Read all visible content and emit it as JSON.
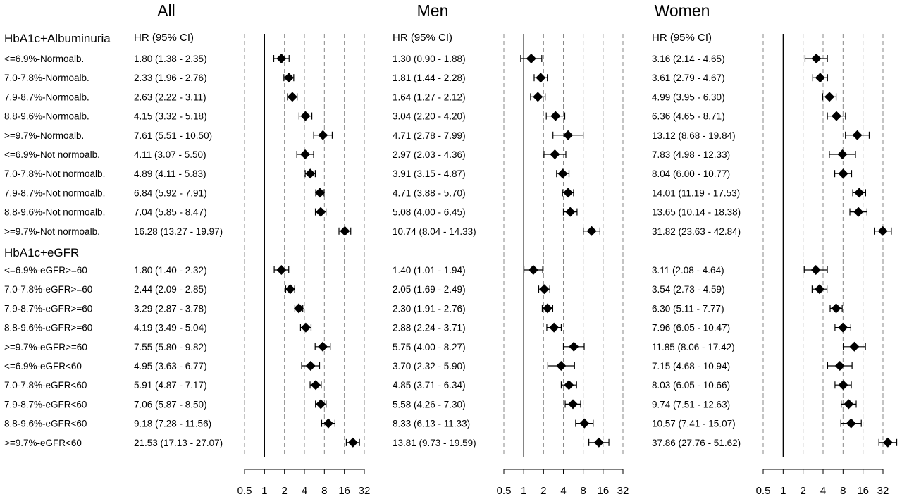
{
  "chart_data": {
    "type": "forest",
    "x_scale": "log2",
    "ticks": [
      0.5,
      1,
      2,
      4,
      8,
      16,
      32
    ],
    "tick_labels": [
      "0.5",
      "1",
      "2",
      "4",
      "8",
      "16",
      "32"
    ],
    "xlim": [
      0.5,
      32
    ],
    "reference_line": 1,
    "dashed_gridlines": [
      0.5,
      2,
      4,
      8,
      16,
      32
    ],
    "ci_header": "HR (95% CI)",
    "marker": "diamond",
    "groups": [
      {
        "title": "HbA1c+Albuminuria",
        "rows": [
          {
            "label": "<=6.9%-Normoalb.",
            "all": {
              "text": "1.80 (1.38 - 2.35)",
              "hr": 1.8,
              "lo": 1.38,
              "hi": 2.35
            },
            "men": {
              "text": "1.30 (0.90 - 1.88)",
              "hr": 1.3,
              "lo": 0.9,
              "hi": 1.88
            },
            "women": {
              "text": "3.16 (2.14 - 4.65)",
              "hr": 3.16,
              "lo": 2.14,
              "hi": 4.65
            }
          },
          {
            "label": "7.0-7.8%-Normoalb.",
            "all": {
              "text": "2.33 (1.96 - 2.76)",
              "hr": 2.33,
              "lo": 1.96,
              "hi": 2.76
            },
            "men": {
              "text": "1.81 (1.44 - 2.28)",
              "hr": 1.81,
              "lo": 1.44,
              "hi": 2.28
            },
            "women": {
              "text": "3.61 (2.79 - 4.67)",
              "hr": 3.61,
              "lo": 2.79,
              "hi": 4.67
            }
          },
          {
            "label": "7.9-8.7%-Normoalb.",
            "all": {
              "text": "2.63 (2.22 - 3.11)",
              "hr": 2.63,
              "lo": 2.22,
              "hi": 3.11
            },
            "men": {
              "text": "1.64 (1.27 - 2.12)",
              "hr": 1.64,
              "lo": 1.27,
              "hi": 2.12
            },
            "women": {
              "text": "4.99 (3.95 - 6.30)",
              "hr": 4.99,
              "lo": 3.95,
              "hi": 6.3
            }
          },
          {
            "label": "8.8-9.6%-Normoalb.",
            "all": {
              "text": "4.15 (3.32 - 5.18)",
              "hr": 4.15,
              "lo": 3.32,
              "hi": 5.18
            },
            "men": {
              "text": "3.04 (2.20 - 4.20)",
              "hr": 3.04,
              "lo": 2.2,
              "hi": 4.2
            },
            "women": {
              "text": "6.36 (4.65 - 8.71)",
              "hr": 6.36,
              "lo": 4.65,
              "hi": 8.71
            }
          },
          {
            "label": ">=9.7%-Normoalb.",
            "all": {
              "text": "7.61 (5.51 - 10.50)",
              "hr": 7.61,
              "lo": 5.51,
              "hi": 10.5
            },
            "men": {
              "text": "4.71 (2.78 - 7.99)",
              "hr": 4.71,
              "lo": 2.78,
              "hi": 7.99
            },
            "women": {
              "text": "13.12 (8.68 - 19.84)",
              "hr": 13.12,
              "lo": 8.68,
              "hi": 19.84
            }
          },
          {
            "label": "<=6.9%-Not normoalb.",
            "all": {
              "text": "4.11 (3.07 - 5.50)",
              "hr": 4.11,
              "lo": 3.07,
              "hi": 5.5
            },
            "men": {
              "text": "2.97 (2.03 - 4.36)",
              "hr": 2.97,
              "lo": 2.03,
              "hi": 4.36
            },
            "women": {
              "text": "7.83 (4.98 - 12.33)",
              "hr": 7.83,
              "lo": 4.98,
              "hi": 12.33
            }
          },
          {
            "label": "7.0-7.8%-Not normoalb.",
            "all": {
              "text": "4.89 (4.11 - 5.83)",
              "hr": 4.89,
              "lo": 4.11,
              "hi": 5.83
            },
            "men": {
              "text": "3.91 (3.15 - 4.87)",
              "hr": 3.91,
              "lo": 3.15,
              "hi": 4.87
            },
            "women": {
              "text": "8.04 (6.00 - 10.77)",
              "hr": 8.04,
              "lo": 6.0,
              "hi": 10.77
            }
          },
          {
            "label": "7.9-8.7%-Not normoalb.",
            "all": {
              "text": "6.84 (5.92 - 7.91)",
              "hr": 6.84,
              "lo": 5.92,
              "hi": 7.91
            },
            "men": {
              "text": "4.71 (3.88 - 5.70)",
              "hr": 4.71,
              "lo": 3.88,
              "hi": 5.7
            },
            "women": {
              "text": "14.01 (11.19 - 17.53)",
              "hr": 14.01,
              "lo": 11.19,
              "hi": 17.53
            }
          },
          {
            "label": "8.8-9.6%-Not normoalb.",
            "all": {
              "text": "7.04 (5.85 - 8.47)",
              "hr": 7.04,
              "lo": 5.85,
              "hi": 8.47
            },
            "men": {
              "text": "5.08 (4.00 - 6.45)",
              "hr": 5.08,
              "lo": 4.0,
              "hi": 6.45
            },
            "women": {
              "text": "13.65 (10.14 - 18.38)",
              "hr": 13.65,
              "lo": 10.14,
              "hi": 18.38
            }
          },
          {
            "label": ">=9.7%-Not normoalb.",
            "all": {
              "text": "16.28 (13.27 - 19.97)",
              "hr": 16.28,
              "lo": 13.27,
              "hi": 19.97
            },
            "men": {
              "text": "10.74 (8.04 - 14.33)",
              "hr": 10.74,
              "lo": 8.04,
              "hi": 14.33
            },
            "women": {
              "text": "31.82 (23.63 - 42.84)",
              "hr": 31.82,
              "lo": 23.63,
              "hi": 42.84
            }
          }
        ]
      },
      {
        "title": "HbA1c+eGFR",
        "rows": [
          {
            "label": "<=6.9%-eGFR>=60",
            "all": {
              "text": "1.80 (1.40 - 2.32)",
              "hr": 1.8,
              "lo": 1.4,
              "hi": 2.32
            },
            "men": {
              "text": "1.40 (1.01 - 1.94)",
              "hr": 1.4,
              "lo": 1.01,
              "hi": 1.94
            },
            "women": {
              "text": "3.11 (2.08 - 4.64)",
              "hr": 3.11,
              "lo": 2.08,
              "hi": 4.64
            }
          },
          {
            "label": "7.0-7.8%-eGFR>=60",
            "all": {
              "text": "2.44 (2.09 - 2.85)",
              "hr": 2.44,
              "lo": 2.09,
              "hi": 2.85
            },
            "men": {
              "text": "2.05 (1.69 - 2.49)",
              "hr": 2.05,
              "lo": 1.69,
              "hi": 2.49
            },
            "women": {
              "text": "3.54 (2.73 - 4.59)",
              "hr": 3.54,
              "lo": 2.73,
              "hi": 4.59
            }
          },
          {
            "label": "7.9-8.7%-eGFR>=60",
            "all": {
              "text": "3.29 (2.87 - 3.78)",
              "hr": 3.29,
              "lo": 2.87,
              "hi": 3.78
            },
            "men": {
              "text": "2.30 (1.91 - 2.76)",
              "hr": 2.3,
              "lo": 1.91,
              "hi": 2.76
            },
            "women": {
              "text": "6.30 (5.11 - 7.77)",
              "hr": 6.3,
              "lo": 5.11,
              "hi": 7.77
            }
          },
          {
            "label": "8.8-9.6%-eGFR>=60",
            "all": {
              "text": "4.19 (3.49 - 5.04)",
              "hr": 4.19,
              "lo": 3.49,
              "hi": 5.04
            },
            "men": {
              "text": "2.88 (2.24 - 3.71)",
              "hr": 2.88,
              "lo": 2.24,
              "hi": 3.71
            },
            "women": {
              "text": "7.96 (6.05 - 10.47)",
              "hr": 7.96,
              "lo": 6.05,
              "hi": 10.47
            }
          },
          {
            "label": ">=9.7%-eGFR>=60",
            "all": {
              "text": "7.55 (5.80 - 9.82)",
              "hr": 7.55,
              "lo": 5.8,
              "hi": 9.82
            },
            "men": {
              "text": "5.75 (4.00 - 8.27)",
              "hr": 5.75,
              "lo": 4.0,
              "hi": 8.27
            },
            "women": {
              "text": "11.85 (8.06 - 17.42)",
              "hr": 11.85,
              "lo": 8.06,
              "hi": 17.42
            }
          },
          {
            "label": "<=6.9%-eGFR<60",
            "all": {
              "text": "4.95 (3.63 - 6.77)",
              "hr": 4.95,
              "lo": 3.63,
              "hi": 6.77
            },
            "men": {
              "text": "3.70 (2.32 - 5.90)",
              "hr": 3.7,
              "lo": 2.32,
              "hi": 5.9
            },
            "women": {
              "text": "7.15 (4.68 - 10.94)",
              "hr": 7.15,
              "lo": 4.68,
              "hi": 10.94
            }
          },
          {
            "label": "7.0-7.8%-eGFR<60",
            "all": {
              "text": "5.91 (4.87 - 7.17)",
              "hr": 5.91,
              "lo": 4.87,
              "hi": 7.17
            },
            "men": {
              "text": "4.85 (3.71 - 6.34)",
              "hr": 4.85,
              "lo": 3.71,
              "hi": 6.34
            },
            "women": {
              "text": "8.03 (6.05 - 10.66)",
              "hr": 8.03,
              "lo": 6.05,
              "hi": 10.66
            }
          },
          {
            "label": "7.9-8.7%-eGFR<60",
            "all": {
              "text": "7.06 (5.87 - 8.50)",
              "hr": 7.06,
              "lo": 5.87,
              "hi": 8.5
            },
            "men": {
              "text": "5.58 (4.26 - 7.30)",
              "hr": 5.58,
              "lo": 4.26,
              "hi": 7.3
            },
            "women": {
              "text": "9.74 (7.51 - 12.63)",
              "hr": 9.74,
              "lo": 7.51,
              "hi": 12.63
            }
          },
          {
            "label": "8.8-9.6%-eGFR<60",
            "all": {
              "text": "9.18 (7.28 - 11.56)",
              "hr": 9.18,
              "lo": 7.28,
              "hi": 11.56
            },
            "men": {
              "text": "8.33 (6.13 - 11.33)",
              "hr": 8.33,
              "lo": 6.13,
              "hi": 11.33
            },
            "women": {
              "text": "10.57 (7.41 - 15.07)",
              "hr": 10.57,
              "lo": 7.41,
              "hi": 15.07
            }
          },
          {
            "label": ">=9.7%-eGFR<60",
            "all": {
              "text": "21.53 (17.13 - 27.07)",
              "hr": 21.53,
              "lo": 17.13,
              "hi": 27.07
            },
            "men": {
              "text": "13.81 (9.73 - 19.59)",
              "hr": 13.81,
              "lo": 9.73,
              "hi": 19.59
            },
            "women": {
              "text": "37.86 (27.76 - 51.62)",
              "hr": 37.86,
              "lo": 27.76,
              "hi": 51.62
            }
          }
        ]
      }
    ],
    "panels": [
      {
        "key": "all",
        "title": "All"
      },
      {
        "key": "men",
        "title": "Men"
      },
      {
        "key": "women",
        "title": "Women"
      }
    ]
  }
}
